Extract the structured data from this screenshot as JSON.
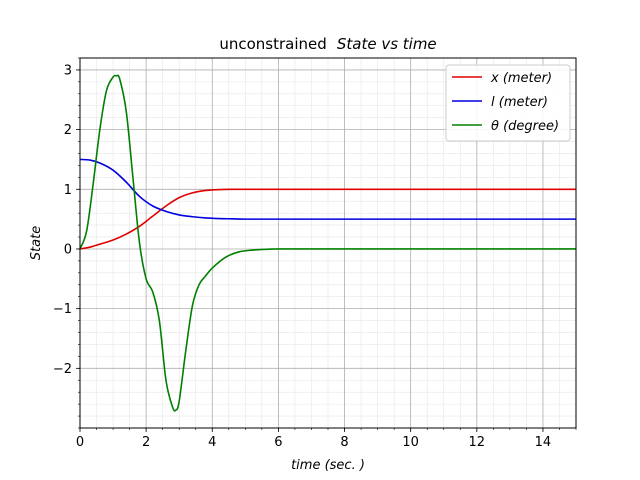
{
  "chart_data": {
    "type": "line",
    "title_prefix": "unconstrained",
    "title_italic": "State vs time",
    "xlabel": "time (sec. )",
    "ylabel": "State",
    "xlim": [
      0,
      15
    ],
    "ylim": [
      -3,
      3.2
    ],
    "x_ticks": [
      0,
      2,
      4,
      6,
      8,
      10,
      12,
      14
    ],
    "y_ticks": [
      -2,
      -1,
      0,
      1,
      2,
      3
    ],
    "x_tick_labels": [
      "0",
      "2",
      "4",
      "6",
      "8",
      "10",
      "12",
      "14"
    ],
    "y_tick_labels": [
      "−2",
      "−1",
      "0",
      "1",
      "2",
      "3"
    ],
    "grid": "major and minor",
    "legend_position": "top-right",
    "series": [
      {
        "name": "x (meter)",
        "color": "#e00000",
        "x": [
          0,
          0.3,
          0.6,
          1,
          1.4,
          1.8,
          2.2,
          2.6,
          3,
          3.4,
          3.8,
          4.2,
          4.6,
          5,
          6,
          8,
          10,
          12,
          15
        ],
        "y": [
          0,
          0.03,
          0.08,
          0.15,
          0.25,
          0.38,
          0.55,
          0.72,
          0.86,
          0.94,
          0.98,
          0.995,
          1,
          1,
          1,
          1,
          1,
          1,
          1
        ]
      },
      {
        "name": "l (meter)",
        "color": "#0000e0",
        "x": [
          0,
          0.3,
          0.6,
          1,
          1.4,
          1.8,
          2.2,
          2.6,
          3,
          3.4,
          3.8,
          4.2,
          4.6,
          5,
          6,
          8,
          10,
          12,
          15
        ],
        "y": [
          1.5,
          1.49,
          1.44,
          1.32,
          1.12,
          0.88,
          0.72,
          0.63,
          0.57,
          0.54,
          0.52,
          0.51,
          0.505,
          0.5,
          0.5,
          0.5,
          0.5,
          0.5,
          0.5
        ]
      },
      {
        "name": "θ (degree)",
        "color": "#008000",
        "x": [
          0,
          0.2,
          0.4,
          0.6,
          0.8,
          1,
          1.1,
          1.2,
          1.4,
          1.6,
          1.8,
          2,
          2.2,
          2.4,
          2.6,
          2.8,
          2.9,
          3,
          3.2,
          3.4,
          3.6,
          3.8,
          4,
          4.4,
          4.8,
          5.2,
          6,
          8,
          10,
          12,
          15
        ],
        "y": [
          0,
          0.3,
          1.1,
          2.0,
          2.65,
          2.88,
          2.9,
          2.85,
          2.3,
          1.2,
          0.1,
          -0.5,
          -0.72,
          -1.2,
          -2.2,
          -2.65,
          -2.7,
          -2.55,
          -1.7,
          -0.95,
          -0.6,
          -0.45,
          -0.32,
          -0.14,
          -0.05,
          -0.02,
          0,
          0,
          0,
          0,
          0
        ]
      }
    ]
  }
}
